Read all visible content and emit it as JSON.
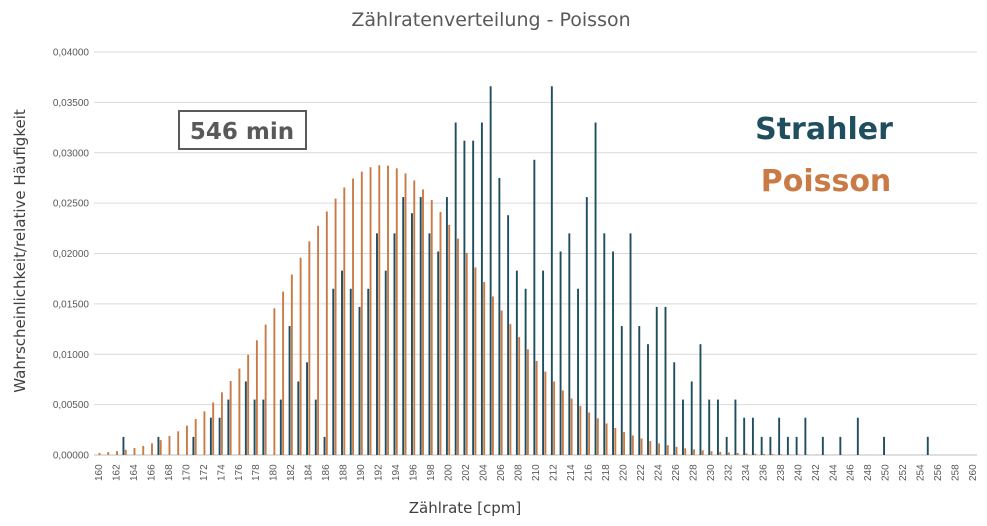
{
  "chart_data": {
    "type": "bar",
    "title": "Zählratenverteilung - Poisson",
    "xlabel": "Zählrate [cpm]",
    "ylabel": "Wahrscheinlichkeit/relative Häufigkeit",
    "ylim": [
      0,
      0.04
    ],
    "yticks": [
      "0,00000",
      "0,00500",
      "0,01000",
      "0,01500",
      "0,02000",
      "0,02500",
      "0,03000",
      "0,03500",
      "0,04000"
    ],
    "xtick_labels": [
      "160",
      "162",
      "164",
      "166",
      "168",
      "170",
      "172",
      "174",
      "176",
      "178",
      "180",
      "182",
      "184",
      "186",
      "188",
      "190",
      "192",
      "194",
      "196",
      "198",
      "200",
      "202",
      "204",
      "206",
      "208",
      "210",
      "212",
      "214",
      "216",
      "218",
      "220",
      "222",
      "224",
      "226",
      "228",
      "230",
      "232",
      "234",
      "236",
      "238",
      "240",
      "242",
      "244",
      "246",
      "248",
      "250",
      "252",
      "254",
      "256",
      "258",
      "260"
    ],
    "categories": [
      160,
      161,
      162,
      163,
      164,
      165,
      166,
      167,
      168,
      169,
      170,
      171,
      172,
      173,
      174,
      175,
      176,
      177,
      178,
      179,
      180,
      181,
      182,
      183,
      184,
      185,
      186,
      187,
      188,
      189,
      190,
      191,
      192,
      193,
      194,
      195,
      196,
      197,
      198,
      199,
      200,
      201,
      202,
      203,
      204,
      205,
      206,
      207,
      208,
      209,
      210,
      211,
      212,
      213,
      214,
      215,
      216,
      217,
      218,
      219,
      220,
      221,
      222,
      223,
      224,
      225,
      226,
      227,
      228,
      229,
      230,
      231,
      232,
      233,
      234,
      235,
      236,
      237,
      238,
      239,
      240,
      241,
      242,
      243,
      244,
      245,
      246,
      247,
      248,
      249,
      250,
      251,
      252,
      253,
      254,
      255,
      256,
      257,
      258,
      259,
      260
    ],
    "annotation": "546 min",
    "grid": true,
    "legend_position": "right",
    "series": [
      {
        "name": "Strahler",
        "color": "#1f4e5f",
        "values": [
          0,
          0,
          0,
          0.0018,
          0,
          0,
          0,
          0.0018,
          0,
          0,
          0,
          0.0018,
          0,
          0.0037,
          0.0037,
          0.0055,
          0,
          0.0073,
          0.0055,
          0.0055,
          0,
          0.0055,
          0.0128,
          0.0073,
          0.0092,
          0.0055,
          0.0018,
          0.0165,
          0.0183,
          0.0165,
          0.0147,
          0.0165,
          0.022,
          0.0183,
          0.022,
          0.0256,
          0.024,
          0.0256,
          0.022,
          0.0202,
          0.0256,
          0.033,
          0.0312,
          0.0312,
          0.033,
          0.0366,
          0.0275,
          0.0238,
          0.0183,
          0.0165,
          0.0293,
          0.0183,
          0.0366,
          0.0202,
          0.022,
          0.0165,
          0.0256,
          0.033,
          0.022,
          0.0202,
          0.0128,
          0.022,
          0.0128,
          0.011,
          0.0147,
          0.0147,
          0.0092,
          0.0055,
          0.0073,
          0.011,
          0.0055,
          0.0055,
          0.0018,
          0.0055,
          0.0037,
          0.0037,
          0.0018,
          0.0018,
          0.0037,
          0.0018,
          0.0018,
          0.0037,
          0,
          0.0018,
          0,
          0.0018,
          0,
          0.0037,
          0,
          0,
          0.0018,
          0,
          0,
          0,
          0,
          0.0018,
          0,
          0,
          0,
          0,
          0
        ]
      },
      {
        "name": "Poisson",
        "color": "#c97a45",
        "values": [
          0.00021,
          0.00029,
          0.00039,
          0.00052,
          0.00069,
          0.0009,
          0.00116,
          0.00148,
          0.00188,
          0.00235,
          0.00291,
          0.00357,
          0.00434,
          0.00522,
          0.00622,
          0.00734,
          0.00858,
          0.00994,
          0.01139,
          0.01294,
          0.01456,
          0.01622,
          0.01791,
          0.01958,
          0.02121,
          0.02275,
          0.02417,
          0.02545,
          0.02655,
          0.02744,
          0.02812,
          0.02856,
          0.02876,
          0.02872,
          0.02845,
          0.02795,
          0.02725,
          0.02636,
          0.02531,
          0.02413,
          0.02284,
          0.02148,
          0.02006,
          0.01862,
          0.01717,
          0.01574,
          0.01434,
          0.01299,
          0.0117,
          0.01048,
          0.00934,
          0.00828,
          0.0073,
          0.00641,
          0.0056,
          0.00487,
          0.00422,
          0.00364,
          0.00313,
          0.00268,
          0.00228,
          0.00194,
          0.00164,
          0.00138,
          0.00116,
          0.00097,
          0.00081,
          0.00067,
          0.00055,
          0.00046,
          0.00037,
          0.0003,
          0.00025,
          0.0002,
          0.00016,
          0.00013,
          0.0001,
          8e-05,
          7e-05,
          5e-05,
          4e-05,
          3e-05,
          3e-05,
          2e-05,
          2e-05,
          1e-05,
          1e-05,
          1e-05,
          1e-05,
          0,
          0,
          0,
          0,
          0,
          0,
          0,
          0,
          0,
          0,
          0,
          0
        ]
      }
    ]
  }
}
